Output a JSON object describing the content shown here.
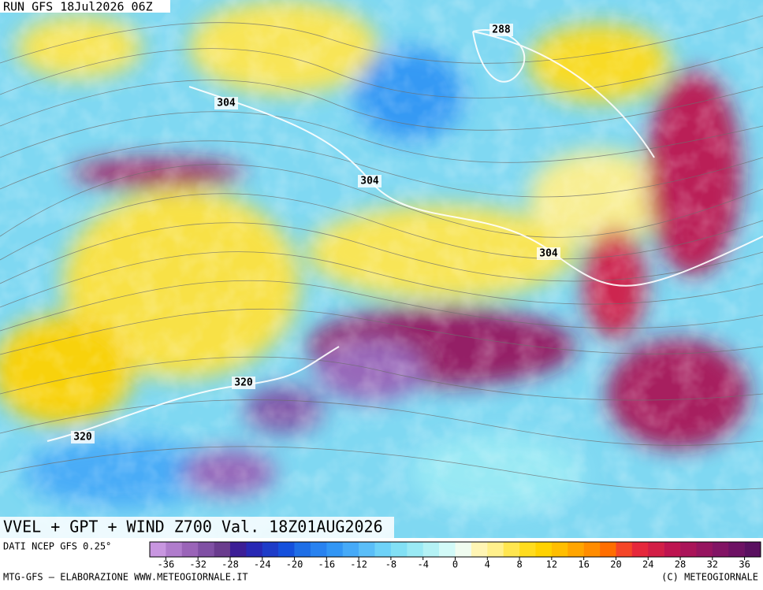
{
  "header": {
    "run": "RUN GFS 18Jul2026 06Z"
  },
  "map": {
    "contour_labels": [
      288,
      304,
      304,
      304,
      320,
      320
    ]
  },
  "footer": {
    "title": "VVEL + GPT + WIND Z700 Val. 18Z01AUG2026",
    "source": "DATI NCEP GFS 0.25°",
    "credit": "MTG-GFS — ELABORAZIONE WWW.METEOGIORNALE.IT",
    "copyright": "(C) METEOGIORNALE"
  },
  "colorbar": {
    "lim": [
      -38,
      38
    ],
    "ticks": [
      -36,
      -32,
      -28,
      -24,
      -20,
      -16,
      -12,
      -8,
      -4,
      0,
      4,
      8,
      12,
      16,
      20,
      24,
      28,
      32,
      36
    ],
    "colors": [
      "#c896e0",
      "#b07ccc",
      "#9a64b8",
      "#8050a4",
      "#6a3c8e",
      "#3c1e96",
      "#2828b4",
      "#1e3cc8",
      "#1450dc",
      "#1e6ee6",
      "#2882f0",
      "#3296f5",
      "#46aaf8",
      "#5abef8",
      "#6ed2f8",
      "#82e0f5",
      "#9aeaf5",
      "#b4f2f5",
      "#d2faf8",
      "#f0fcf0",
      "#fff5b4",
      "#fff08c",
      "#ffe650",
      "#ffdc1e",
      "#ffd200",
      "#ffbe00",
      "#ffa500",
      "#ff8c00",
      "#ff6e00",
      "#f54628",
      "#e6283c",
      "#d21e46",
      "#be1450",
      "#aa1459",
      "#96145f",
      "#821464",
      "#6e1264",
      "#5a1060"
    ]
  }
}
